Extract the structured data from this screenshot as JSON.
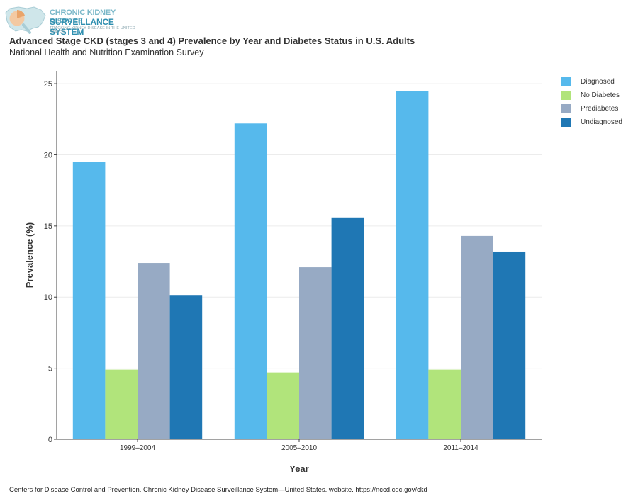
{
  "logo": {
    "line1": "CHRONIC KIDNEY DISEASE",
    "line2": "SURVEILLANCE SYSTEM",
    "line3": "TRACKING KIDNEY DISEASE IN THE UNITED STATES"
  },
  "header": {
    "title": "Advanced Stage CKD (stages 3 and 4) Prevalence by Year and Diabetes Status in U.S. Adults",
    "subtitle": "National Health and Nutrition Examination Survey"
  },
  "footer": {
    "source": "Centers for Disease Control and Prevention. Chronic Kidney Disease Surveillance System—United States. website. https://nccd.cdc.gov/ckd"
  },
  "chart_data": {
    "type": "bar",
    "categories": [
      "1999–2004",
      "2005–2010",
      "2011–2014"
    ],
    "series": [
      {
        "name": "Diagnosed",
        "color": "#56b9ec",
        "values": [
          19.5,
          22.2,
          24.5
        ]
      },
      {
        "name": "No Diabetes",
        "color": "#b1e47b",
        "values": [
          4.9,
          4.7,
          4.9
        ]
      },
      {
        "name": "Prediabetes",
        "color": "#97aac4",
        "values": [
          12.4,
          12.1,
          14.3
        ]
      },
      {
        "name": "Undiagnosed",
        "color": "#1f77b4",
        "values": [
          10.1,
          15.6,
          13.2
        ]
      }
    ],
    "xlabel": "Year",
    "ylabel": "Prevalence (%)",
    "ylim": [
      0,
      25.9
    ],
    "yticks": [
      0,
      5,
      10,
      15,
      20,
      25
    ],
    "grid": true,
    "legend_position": "top-right"
  }
}
